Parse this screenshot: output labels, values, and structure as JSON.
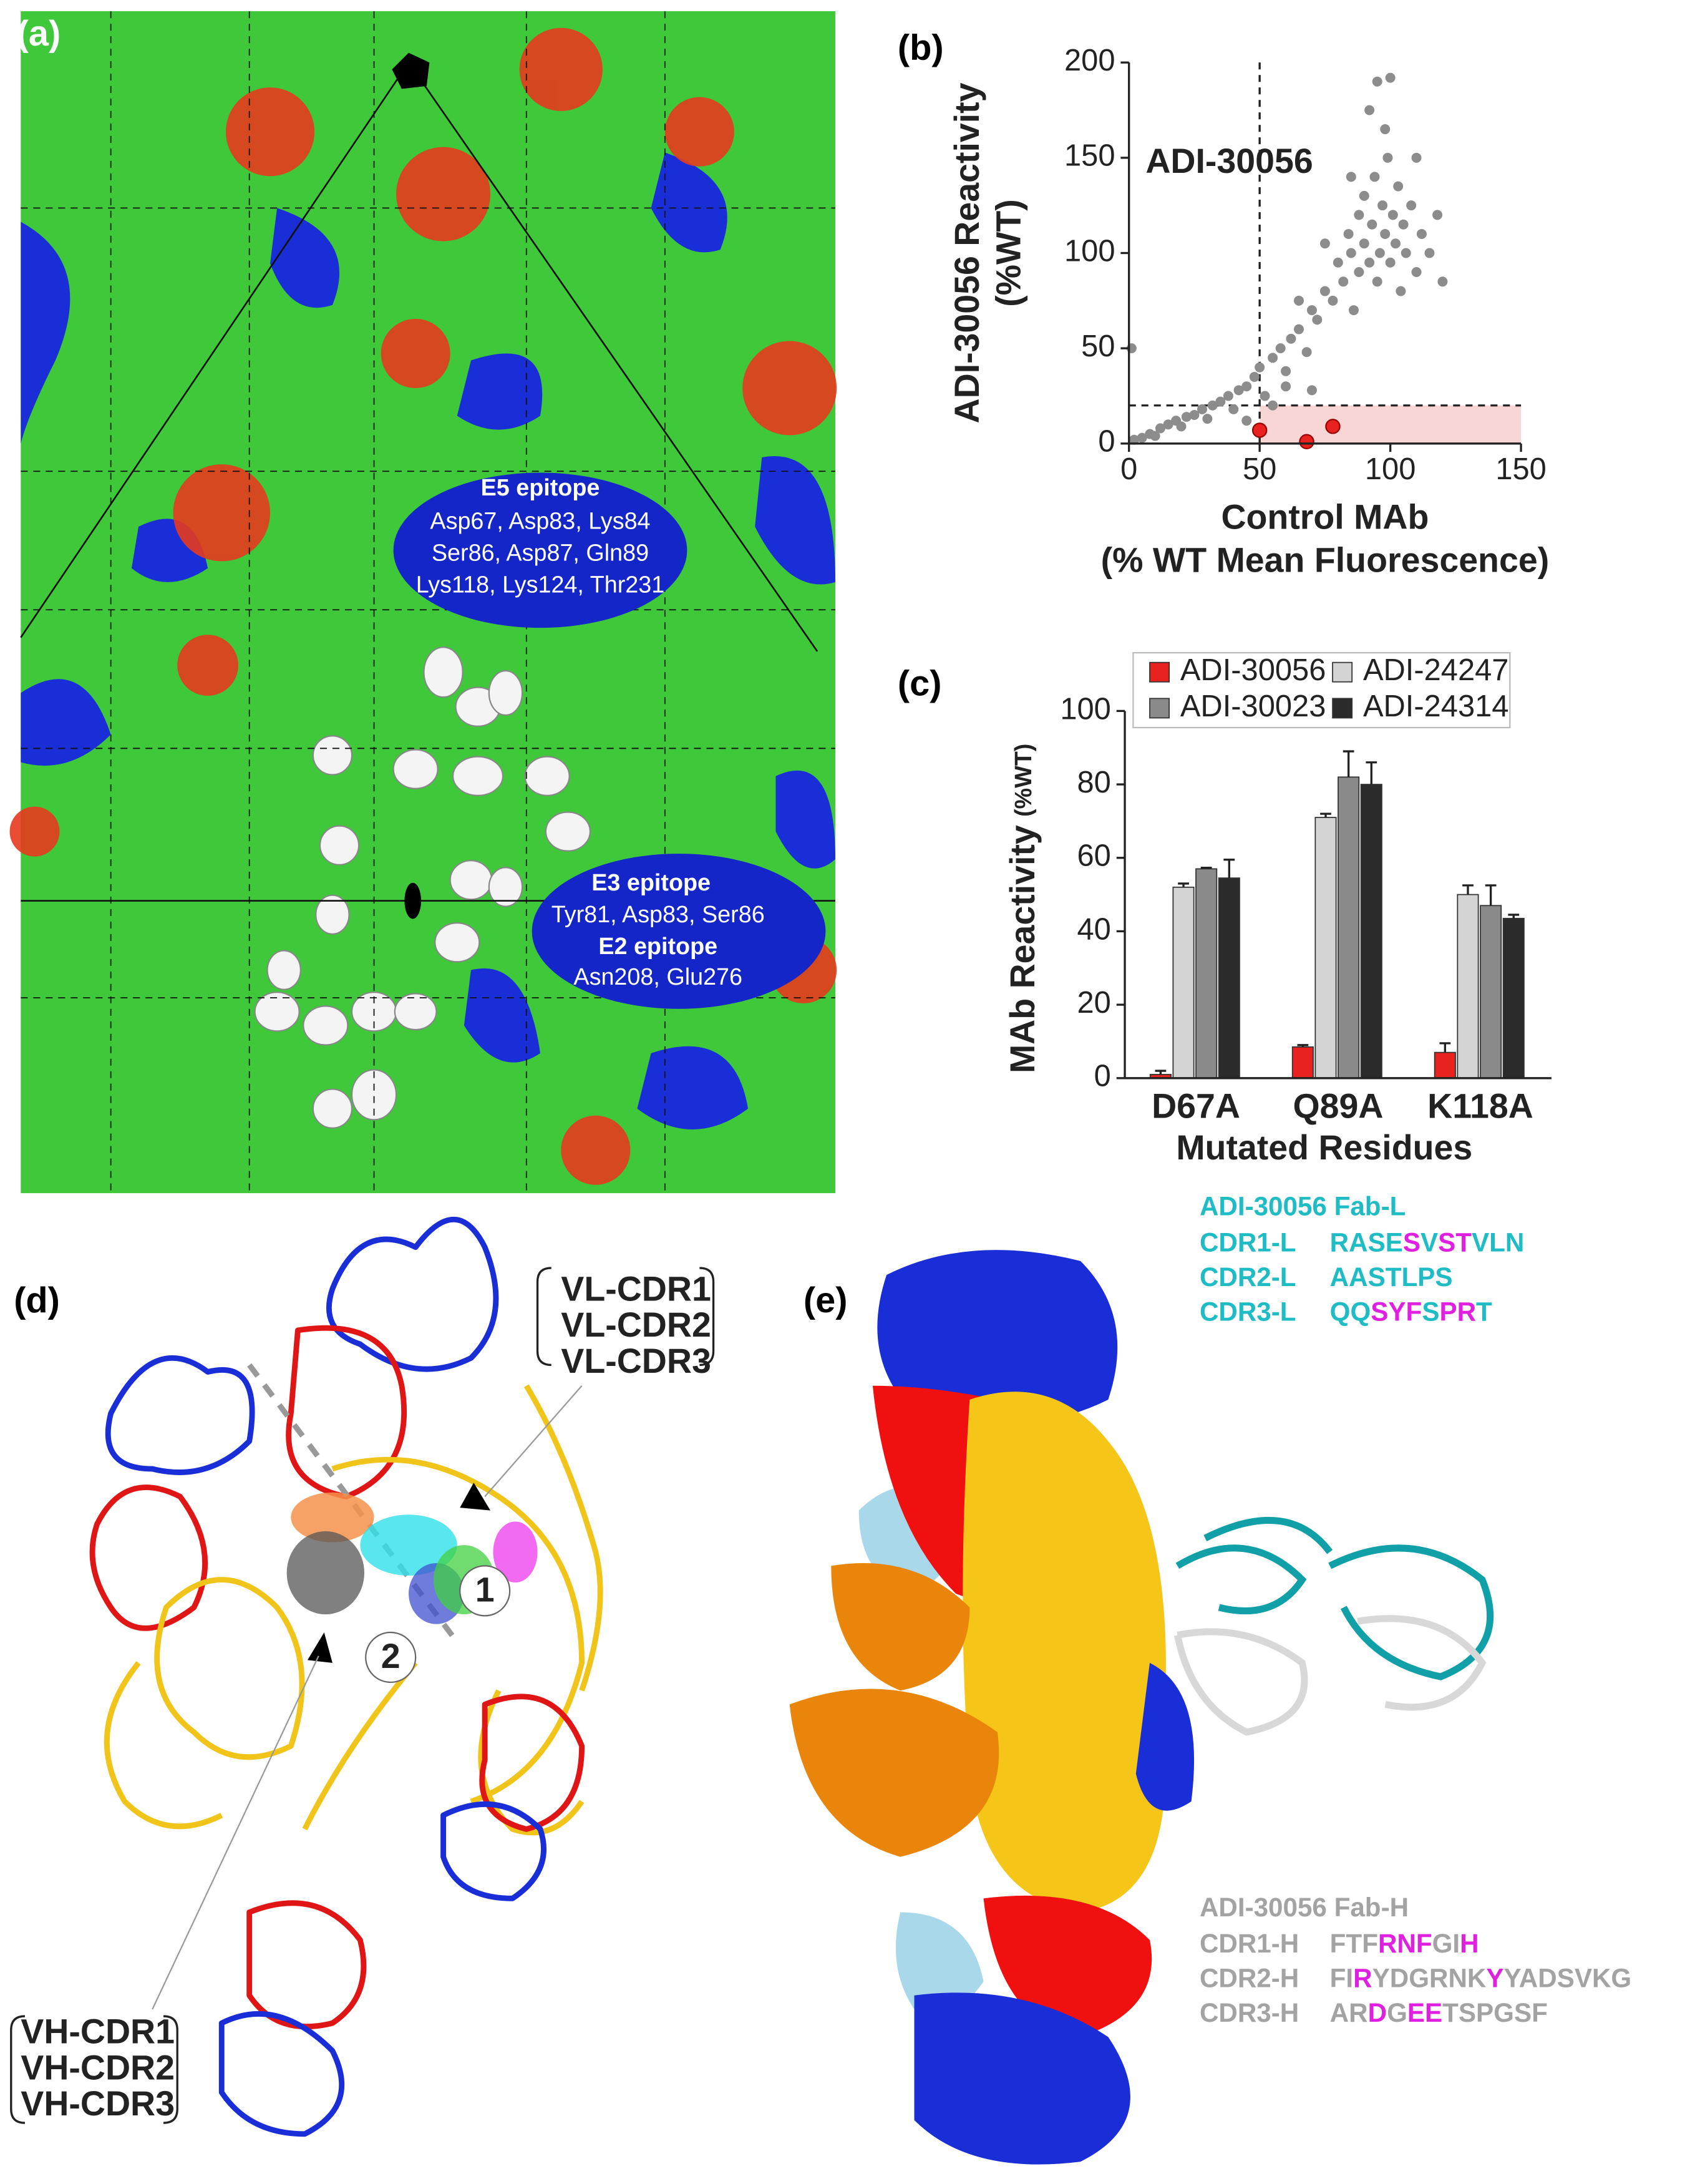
{
  "panel_labels": [
    "(a)",
    "(b)",
    "(c)",
    "(d)",
    "(e)"
  ],
  "surface_map": {
    "epitopes": [
      {
        "title": "E5 epitope",
        "lines": [
          "Asp67, Asp83, Lys84",
          "Ser86, Asp87, Gln89",
          "Lys118, Lys124, Thr231"
        ]
      },
      {
        "title": "E3 epitope",
        "lines": [
          "Tyr81, Asp83, Ser86"
        ]
      },
      {
        "title": "E2 epitope",
        "lines": [
          "Asn208, Glu276"
        ]
      }
    ]
  },
  "chart_data": [
    {
      "type": "scatter",
      "annotation": "ADI-30056",
      "xlabel": "Control MAb",
      "xlabel_sub": "(% WT Mean Fluorescence)",
      "ylabel": "ADI-30056 Reactivity",
      "ylabel_sub": "(%WT)",
      "color": "#8c8c8c",
      "x": [
        2,
        5,
        8,
        10,
        12,
        15,
        18,
        20,
        22,
        25,
        28,
        30,
        32,
        35,
        38,
        40,
        42,
        45,
        48,
        50,
        52,
        55,
        58,
        60,
        62,
        65,
        68,
        70,
        72,
        75,
        78,
        80,
        82,
        84,
        85,
        86,
        88,
        88,
        90,
        90,
        92,
        93,
        94,
        95,
        96,
        97,
        98,
        99,
        100,
        101,
        102,
        103,
        104,
        105,
        106,
        108,
        110,
        112,
        115,
        118,
        120,
        95,
        100,
        92,
        98,
        110,
        85,
        75,
        65,
        60,
        1,
        45,
        55,
        70
      ],
      "y": [
        2,
        3,
        5,
        4,
        8,
        10,
        12,
        9,
        14,
        15,
        18,
        13,
        20,
        22,
        25,
        18,
        28,
        30,
        35,
        40,
        25,
        45,
        50,
        38,
        55,
        60,
        48,
        70,
        65,
        80,
        75,
        95,
        85,
        110,
        100,
        70,
        120,
        90,
        105,
        130,
        95,
        115,
        140,
        85,
        100,
        125,
        110,
        150,
        95,
        120,
        105,
        135,
        80,
        115,
        100,
        125,
        90,
        110,
        100,
        120,
        85,
        190,
        192,
        175,
        165,
        150,
        140,
        105,
        75,
        30,
        50,
        12,
        20,
        28
      ],
      "highlight": {
        "color": "#e8231f",
        "x": [
          50,
          68,
          78
        ],
        "y": [
          7,
          1,
          9
        ]
      },
      "threshold": {
        "x": 50,
        "y": 20,
        "color": "#f9d6d6"
      },
      "xlim": [
        0,
        150
      ],
      "xticks": [
        0,
        50,
        100,
        150
      ],
      "ylim": [
        0,
        200
      ],
      "yticks": [
        0,
        50,
        100,
        150,
        200
      ]
    },
    {
      "type": "bar",
      "ylabel": "MAb Reactivity",
      "ylabel_sub": "(%WT)",
      "xlabel": "Mutated Residues",
      "categories": [
        "D67A",
        "Q89A",
        "K118A"
      ],
      "series": [
        {
          "name": "ADI-30056",
          "color": "#e8231f",
          "values": [
            1,
            8.5,
            7
          ],
          "errors": [
            1,
            0.5,
            2.5
          ]
        },
        {
          "name": "ADI-24247",
          "color": "#d4d4d4",
          "values": [
            52,
            71,
            50
          ],
          "errors": [
            1,
            1,
            2.5
          ]
        },
        {
          "name": "ADI-30023",
          "color": "#8a8a8a",
          "values": [
            57,
            82,
            47
          ],
          "errors": [
            0.3,
            7,
            5.5
          ]
        },
        {
          "name": "ADI-24314",
          "color": "#2b2b2b",
          "values": [
            54.5,
            80,
            43.5
          ],
          "errors": [
            5,
            6,
            1
          ]
        }
      ],
      "legend_columns": 2,
      "ylim": [
        0,
        100
      ],
      "yticks": [
        0,
        20,
        40,
        60,
        80,
        100
      ]
    }
  ],
  "structure_d": {
    "vl_labels": [
      {
        "text": "VL-CDR1",
        "color": "#22c022"
      },
      {
        "text": "VL-CDR2",
        "color": "#e020e0"
      },
      {
        "text": "VL-CDR3",
        "color": "#2030d0"
      }
    ],
    "vh_labels": [
      {
        "text": "VH-CDR1",
        "color": "#f07820"
      },
      {
        "text": "VH-CDR2",
        "color": "#111111"
      },
      {
        "text": "VH-CDR3",
        "color": "#20d0e0"
      }
    ],
    "markers": [
      "1",
      "2"
    ]
  },
  "structure_e": {
    "light": {
      "title": "ADI-30056 Fab-L",
      "color": "#1fbcc6",
      "highlight_color": "#e020e0",
      "rows": [
        {
          "name": "CDR1-L",
          "segments": [
            {
              "text": "RASE"
            },
            {
              "text": "S",
              "highlight": true
            },
            {
              "text": "V"
            },
            {
              "text": "ST",
              "highlight": true
            },
            {
              "text": "VLN"
            }
          ]
        },
        {
          "name": "CDR2-L",
          "segments": [
            {
              "text": "AASTLPS"
            }
          ]
        },
        {
          "name": "CDR3-L",
          "segments": [
            {
              "text": "QQ"
            },
            {
              "text": "SYF",
              "highlight": true
            },
            {
              "text": "S"
            },
            {
              "text": "PR",
              "highlight": true
            },
            {
              "text": "T"
            }
          ]
        }
      ]
    },
    "heavy": {
      "title": "ADI-30056 Fab-H",
      "color": "#a3a3a3",
      "highlight_color": "#e020e0",
      "rows": [
        {
          "name": "CDR1-H",
          "segments": [
            {
              "text": "FTF"
            },
            {
              "text": "RNF",
              "highlight": true
            },
            {
              "text": "GI"
            },
            {
              "text": "H",
              "highlight": true
            }
          ]
        },
        {
          "name": "CDR2-H",
          "segments": [
            {
              "text": "FI"
            },
            {
              "text": "R",
              "highlight": true
            },
            {
              "text": "YDGRNK"
            },
            {
              "text": "Y",
              "highlight": true
            },
            {
              "text": "YADSVKG"
            }
          ]
        },
        {
          "name": "CDR3-H",
          "segments": [
            {
              "text": "AR"
            },
            {
              "text": "D",
              "highlight": true
            },
            {
              "text": "G"
            },
            {
              "text": "EE",
              "highlight": true
            },
            {
              "text": "TSPGSF"
            }
          ]
        }
      ]
    }
  }
}
